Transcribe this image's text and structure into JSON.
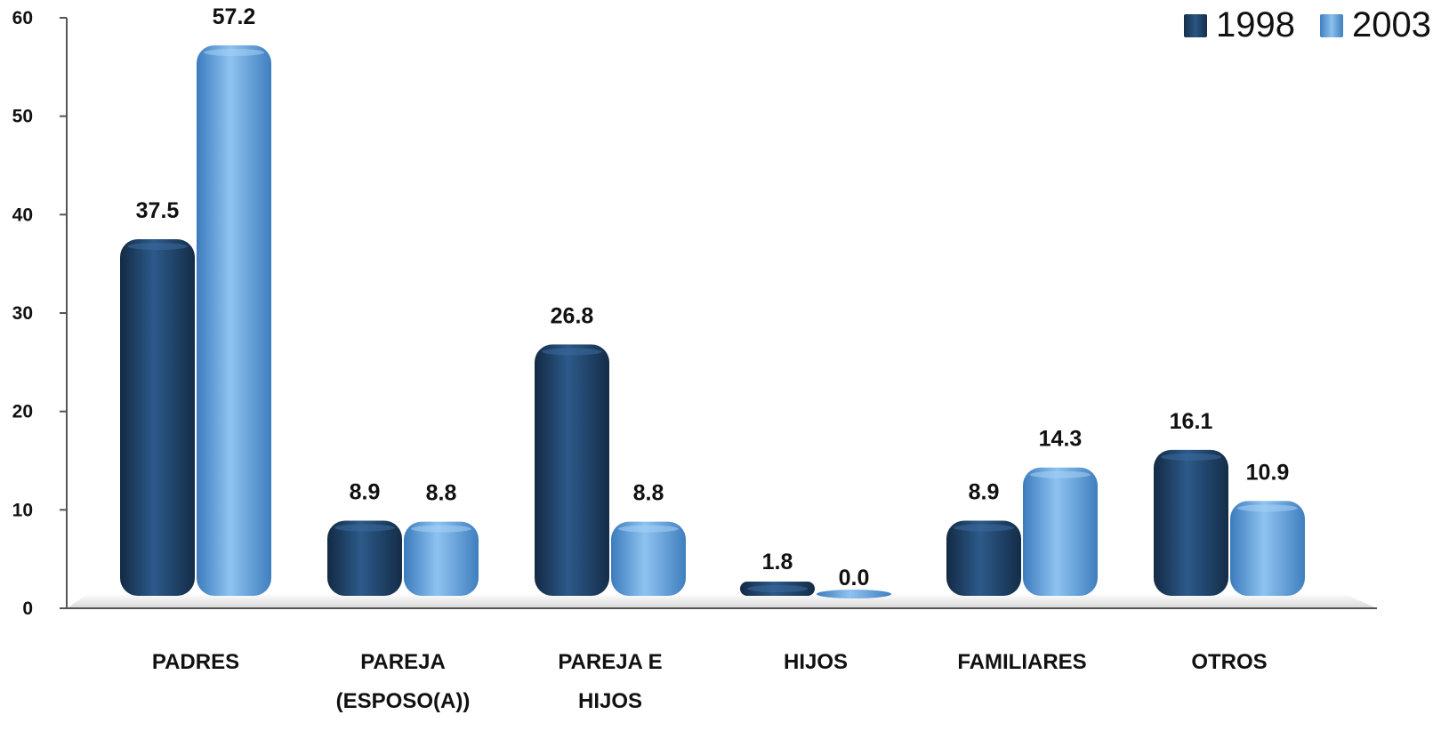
{
  "chart_data": {
    "type": "bar",
    "categories": [
      [
        "PADRES"
      ],
      [
        "PAREJA",
        "(ESPOSO(A))"
      ],
      [
        "PAREJA E",
        "HIJOS"
      ],
      [
        "HIJOS"
      ],
      [
        "FAMILIARES"
      ],
      [
        "OTROS"
      ]
    ],
    "series": [
      {
        "name": "1998",
        "values": [
          37.5,
          8.9,
          26.8,
          1.8,
          8.9,
          16.1
        ],
        "value_labels": [
          "37.5",
          "8.9",
          "26.8",
          "1.8",
          "8.9",
          "16.1"
        ],
        "color": "#1f3f63"
      },
      {
        "name": "2003",
        "values": [
          57.2,
          8.8,
          8.8,
          0.0,
          14.3,
          10.9
        ],
        "value_labels": [
          "57.2",
          "8.8",
          "8.8",
          "0.0",
          "14.3",
          "10.9"
        ],
        "color": "#5b9bd5"
      }
    ],
    "yticks": [
      "0",
      "10",
      "20",
      "30",
      "40",
      "50",
      "60"
    ],
    "ylim": [
      0,
      60
    ],
    "grid": false,
    "legend_position": "top-right"
  }
}
